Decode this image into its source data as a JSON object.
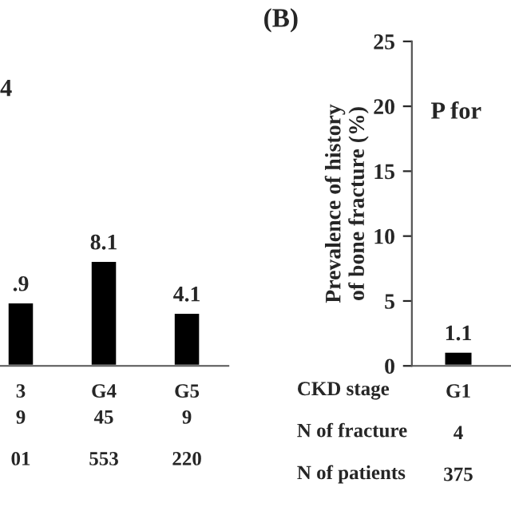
{
  "chart_data": [
    {
      "type": "bar",
      "title": "4",
      "categories": [
        "3",
        "G4",
        "G5"
      ],
      "values": [
        4.9,
        8.1,
        4.1
      ],
      "value_labels": [
        null,
        "8.1",
        "4.1"
      ],
      "annotations": [
        ".9",
        "9\n01",
        "45\n553",
        "9\n220"
      ],
      "color": "#000000",
      "ylim": [
        0,
        25
      ],
      "tick_labels": "x",
      "grid": false,
      "legend": false
    },
    {
      "type": "bar",
      "title": "(B)",
      "categories": [
        "G1\n4\n375"
      ],
      "values": [
        1.1
      ],
      "value_labels": [
        "1.1"
      ],
      "color": "#000000",
      "ylabel": "Prevalence of history\nof bone fracture (%)",
      "ylim": [
        0,
        25
      ],
      "yticks": [
        0,
        5,
        10,
        15,
        20,
        25
      ],
      "annotations": [
        "P for",
        "CKD stage\nN of fracture\nN of patients"
      ],
      "grid": false,
      "legend": false
    }
  ]
}
